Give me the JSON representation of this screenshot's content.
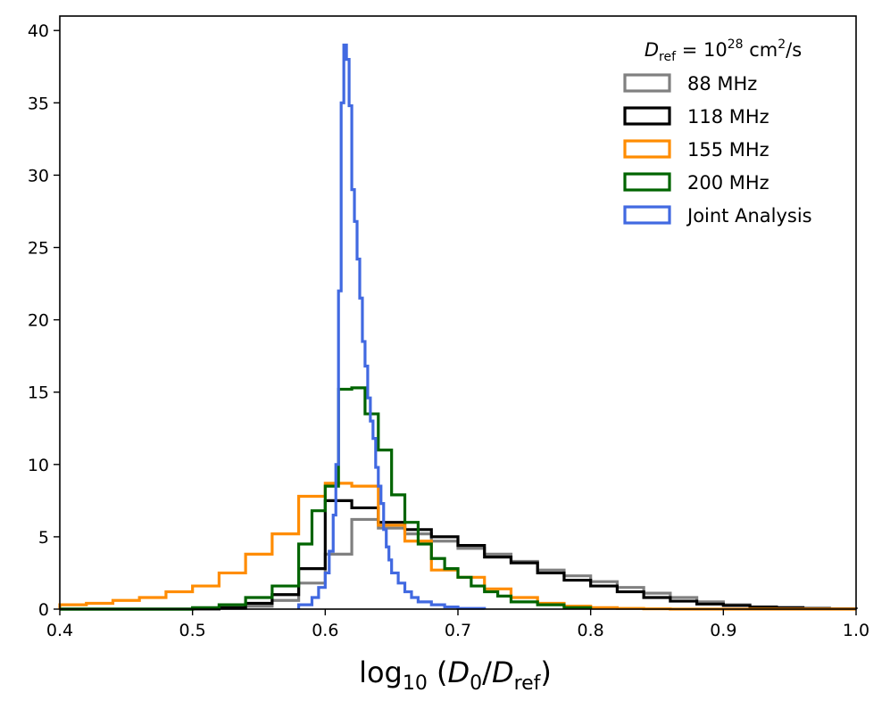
{
  "chart_data": {
    "type": "histogram",
    "xlabel": "log10(D0/Dref)",
    "ylabel": "",
    "xlim": [
      0.4,
      1.0
    ],
    "ylim": [
      0,
      41
    ],
    "x_ticks": [
      "0.4",
      "0.5",
      "0.6",
      "0.7",
      "0.8",
      "0.9",
      "1.0"
    ],
    "y_ticks": [
      "0",
      "5",
      "10",
      "15",
      "20",
      "25",
      "30",
      "35",
      "40"
    ],
    "grid": false,
    "legend_position": "top-right",
    "legend_title": "Dref = 10^28 cm^2/s",
    "series": [
      {
        "name": "88 MHz",
        "color": "#808080",
        "edges": [
          0.4,
          0.42,
          0.44,
          0.46,
          0.48,
          0.5,
          0.52,
          0.54,
          0.56,
          0.58,
          0.6,
          0.62,
          0.64,
          0.66,
          0.68,
          0.7,
          0.72,
          0.74,
          0.76,
          0.78,
          0.8,
          0.82,
          0.84,
          0.86,
          0.88,
          0.9,
          0.92,
          0.94,
          0.96,
          0.98,
          1.0
        ],
        "values": [
          0.0,
          0.0,
          0.0,
          0.0,
          0.0,
          0.0,
          0.05,
          0.2,
          0.6,
          1.8,
          3.8,
          6.2,
          5.6,
          5.2,
          4.7,
          4.2,
          3.8,
          3.3,
          2.7,
          2.3,
          1.9,
          1.5,
          1.1,
          0.8,
          0.5,
          0.3,
          0.15,
          0.1,
          0.05,
          0.02
        ]
      },
      {
        "name": "118 MHz",
        "color": "#000000",
        "edges": [
          0.4,
          0.42,
          0.44,
          0.46,
          0.48,
          0.5,
          0.52,
          0.54,
          0.56,
          0.58,
          0.6,
          0.62,
          0.64,
          0.66,
          0.68,
          0.7,
          0.72,
          0.74,
          0.76,
          0.78,
          0.8,
          0.82,
          0.84,
          0.86,
          0.88,
          0.9,
          0.92,
          0.94,
          0.96,
          0.98,
          1.0
        ],
        "values": [
          0.0,
          0.0,
          0.0,
          0.0,
          0.0,
          0.02,
          0.1,
          0.4,
          1.0,
          2.8,
          7.5,
          7.0,
          6.0,
          5.5,
          5.0,
          4.4,
          3.6,
          3.2,
          2.5,
          2.0,
          1.6,
          1.2,
          0.8,
          0.55,
          0.35,
          0.25,
          0.15,
          0.1,
          0.05,
          0.02
        ]
      },
      {
        "name": "155 MHz",
        "color": "#ff8c00",
        "edges": [
          0.4,
          0.42,
          0.44,
          0.46,
          0.48,
          0.5,
          0.52,
          0.54,
          0.56,
          0.58,
          0.6,
          0.62,
          0.64,
          0.66,
          0.68,
          0.7,
          0.72,
          0.74,
          0.76,
          0.78,
          0.8,
          0.82,
          0.84,
          0.86,
          0.88,
          0.9,
          0.92,
          0.94,
          0.96,
          0.98,
          1.0
        ],
        "values": [
          0.3,
          0.4,
          0.6,
          0.8,
          1.2,
          1.6,
          2.5,
          3.8,
          5.2,
          7.8,
          8.7,
          8.5,
          5.8,
          4.7,
          2.7,
          2.2,
          1.4,
          0.8,
          0.4,
          0.2,
          0.1,
          0.05,
          0.02,
          0.0,
          0.0,
          0.0,
          0.0,
          0.0,
          0.0,
          0.0
        ]
      },
      {
        "name": "200 MHz",
        "color": "#006400",
        "edges": [
          0.4,
          0.42,
          0.44,
          0.46,
          0.48,
          0.5,
          0.52,
          0.54,
          0.56,
          0.58,
          0.59,
          0.6,
          0.61,
          0.62,
          0.63,
          0.64,
          0.65,
          0.66,
          0.67,
          0.68,
          0.69,
          0.7,
          0.71,
          0.72,
          0.73,
          0.74,
          0.76,
          0.78,
          0.8
        ],
        "values": [
          0.0,
          0.0,
          0.0,
          0.0,
          0.0,
          0.1,
          0.3,
          0.8,
          1.6,
          4.5,
          6.8,
          8.5,
          15.2,
          15.3,
          13.5,
          11.0,
          7.9,
          6.0,
          4.5,
          3.5,
          2.8,
          2.2,
          1.6,
          1.2,
          0.9,
          0.5,
          0.3,
          0.1
        ]
      },
      {
        "name": "Joint Analysis",
        "color": "#4169e1",
        "edges": [
          0.58,
          0.59,
          0.595,
          0.6,
          0.603,
          0.606,
          0.608,
          0.61,
          0.612,
          0.614,
          0.616,
          0.618,
          0.62,
          0.622,
          0.624,
          0.626,
          0.628,
          0.63,
          0.632,
          0.634,
          0.636,
          0.638,
          0.64,
          0.642,
          0.644,
          0.646,
          0.648,
          0.65,
          0.655,
          0.66,
          0.665,
          0.67,
          0.68,
          0.69,
          0.7,
          0.72
        ],
        "values": [
          0.3,
          0.8,
          1.5,
          2.5,
          4.0,
          6.5,
          10.0,
          22.0,
          35.0,
          39.0,
          38.0,
          34.8,
          29.0,
          26.8,
          24.2,
          21.5,
          18.5,
          16.8,
          14.6,
          13.0,
          11.8,
          9.8,
          8.5,
          7.3,
          5.5,
          4.3,
          3.4,
          2.5,
          1.8,
          1.2,
          0.8,
          0.5,
          0.3,
          0.15,
          0.05
        ]
      }
    ]
  }
}
